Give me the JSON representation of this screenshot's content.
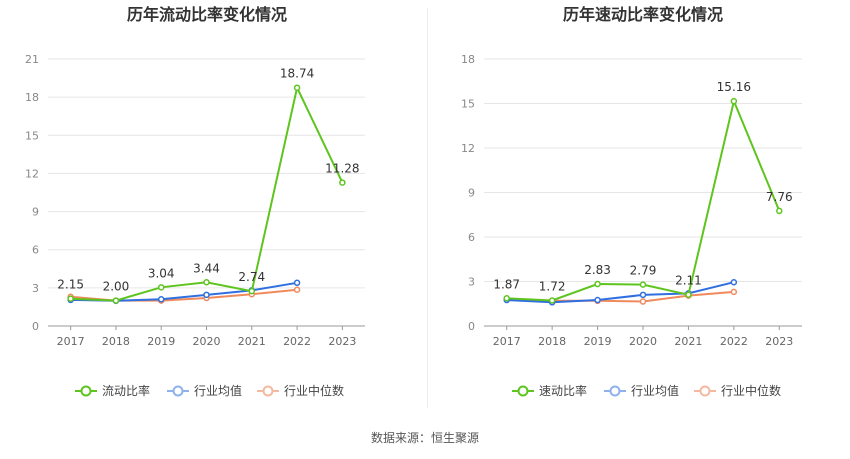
{
  "source_label": "数据来源：恒生聚源",
  "colors": {
    "current": "#5ec41e",
    "industry_avg": "#2f6fe0",
    "industry_median": "#f08a5d",
    "legend_avg": "#8fb1ec",
    "legend_median": "#f5b8a0"
  },
  "chart_data": [
    {
      "type": "line",
      "title": "历年流动比率变化情况",
      "categories": [
        "2017",
        "2018",
        "2019",
        "2020",
        "2021",
        "2022",
        "2023"
      ],
      "ylim": [
        0,
        21
      ],
      "yticks": [
        0,
        3,
        6,
        9,
        12,
        15,
        18,
        21
      ],
      "grid": true,
      "legend_position": "bottom",
      "series": [
        {
          "name": "流动比率",
          "values": [
            2.15,
            2.0,
            3.04,
            3.44,
            2.74,
            18.74,
            11.28
          ],
          "labels": [
            "2.15",
            "2.00",
            "3.04",
            "3.44",
            "2.74",
            "18.74",
            "11.28"
          ],
          "color": "#5ec41e"
        },
        {
          "name": "行业均值",
          "values": [
            2.05,
            1.98,
            2.1,
            2.45,
            2.8,
            3.4,
            null
          ],
          "color": "#2f6fe0"
        },
        {
          "name": "行业中位数",
          "values": [
            2.3,
            2.0,
            2.0,
            2.2,
            2.5,
            2.85,
            null
          ],
          "color": "#f08a5d"
        }
      ]
    },
    {
      "type": "line",
      "title": "历年速动比率变化情况",
      "categories": [
        "2017",
        "2018",
        "2019",
        "2020",
        "2021",
        "2022",
        "2023"
      ],
      "ylim": [
        0,
        18
      ],
      "yticks": [
        0,
        3,
        6,
        9,
        12,
        15,
        18
      ],
      "grid": true,
      "legend_position": "bottom",
      "series": [
        {
          "name": "速动比率",
          "values": [
            1.87,
            1.72,
            2.83,
            2.79,
            2.11,
            15.16,
            7.76
          ],
          "labels": [
            "1.87",
            "1.72",
            "2.83",
            "2.79",
            "2.11",
            "15.16",
            "7.76"
          ],
          "color": "#5ec41e"
        },
        {
          "name": "行业均值",
          "values": [
            1.75,
            1.6,
            1.75,
            2.1,
            2.2,
            2.95,
            null
          ],
          "color": "#2f6fe0"
        },
        {
          "name": "行业中位数",
          "values": [
            1.8,
            1.7,
            1.7,
            1.65,
            2.05,
            2.3,
            null
          ],
          "color": "#f08a5d"
        }
      ]
    }
  ]
}
